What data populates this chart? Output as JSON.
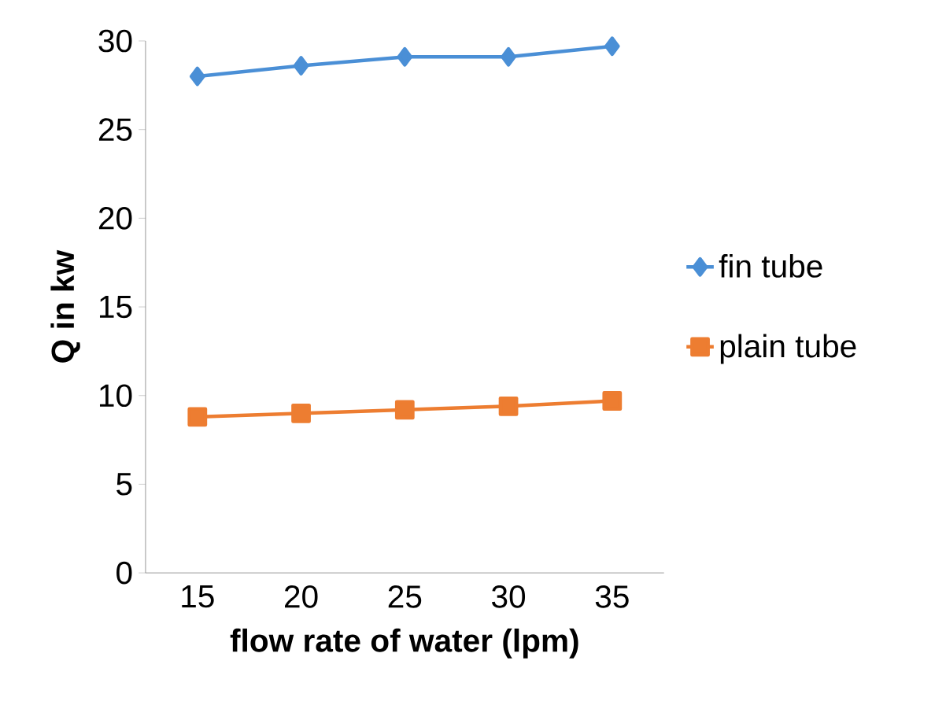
{
  "chart_data": {
    "type": "line",
    "xlabel": "flow rate of water  (lpm)",
    "ylabel": "Q in kw",
    "categories": [
      "15",
      "20",
      "25",
      "30",
      "35"
    ],
    "series": [
      {
        "name": "fin tube",
        "color": "#4a8fd6",
        "marker": "diamond",
        "values": [
          28.0,
          28.6,
          29.1,
          29.1,
          29.7
        ]
      },
      {
        "name": "plain tube",
        "color": "#ed7d31",
        "marker": "square",
        "values": [
          8.8,
          9.0,
          9.2,
          9.4,
          9.7
        ]
      }
    ],
    "ylim": [
      0,
      30
    ],
    "yticks": [
      0,
      5,
      10,
      15,
      20,
      25,
      30
    ],
    "grid": false,
    "legend": "right"
  }
}
